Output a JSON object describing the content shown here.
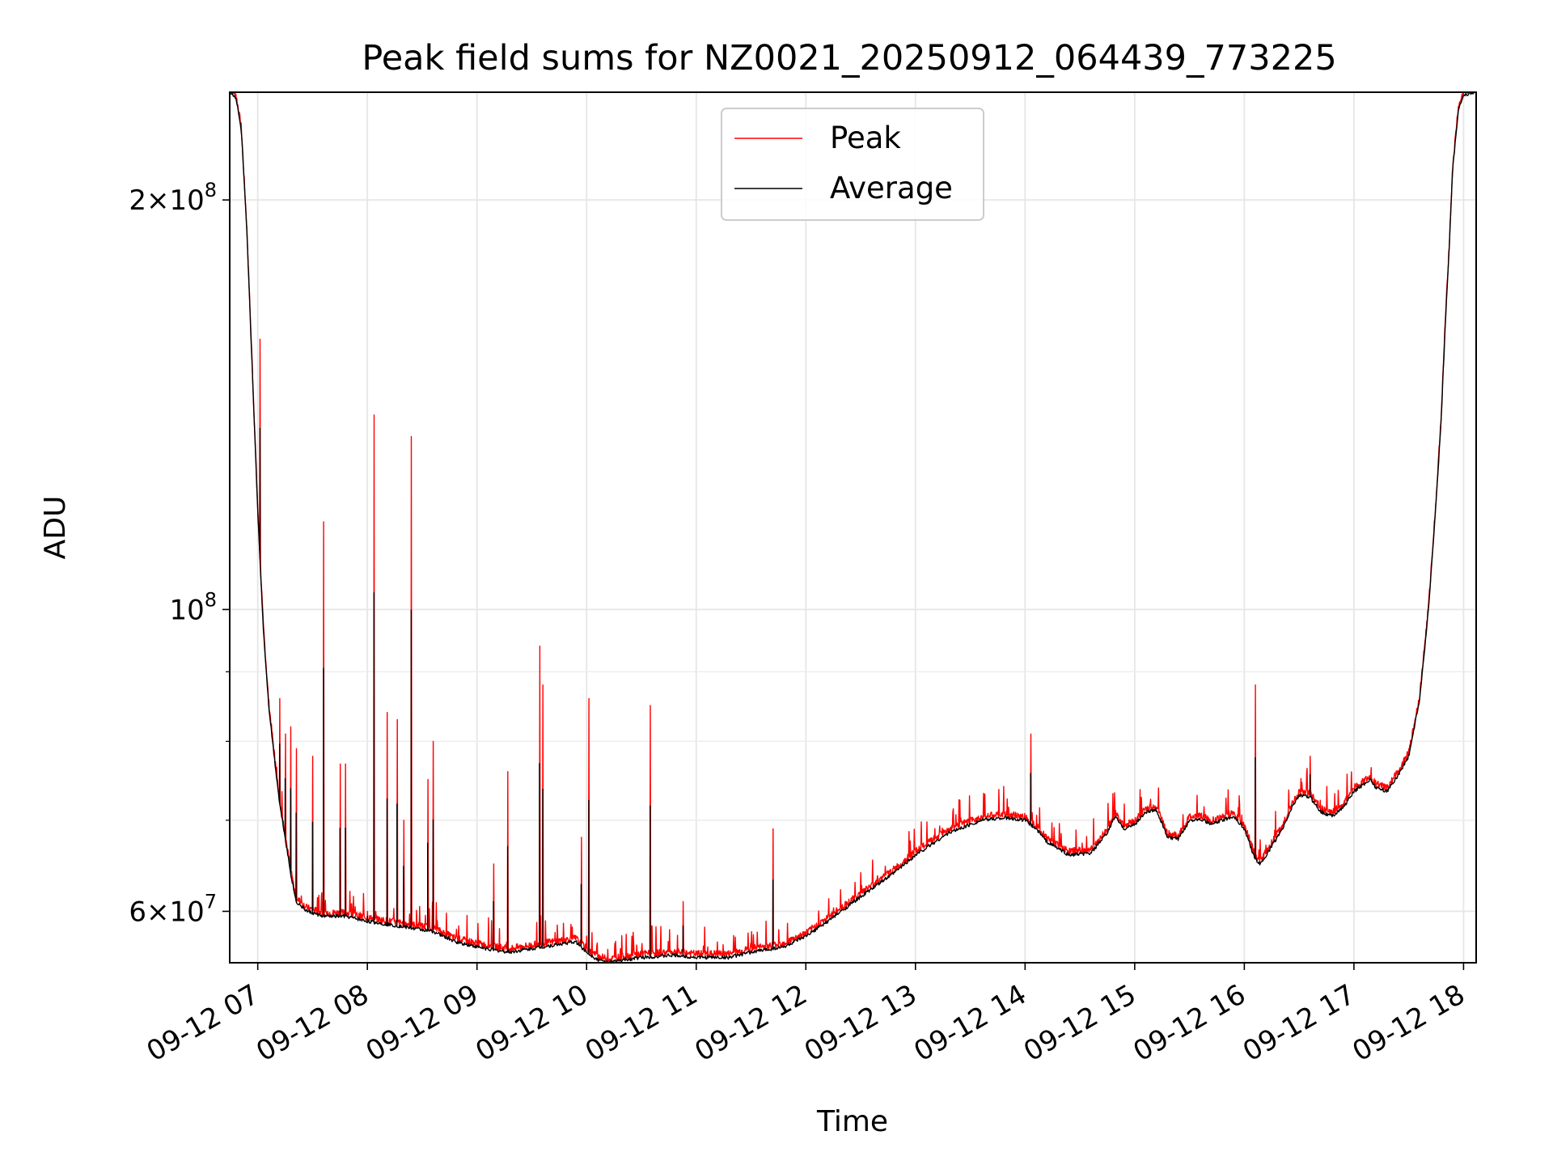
{
  "chart_data": {
    "type": "line",
    "title": "Peak field sums for NZ0021_20250912_064439_773225",
    "xlabel": "Time",
    "ylabel": "ADU",
    "x_range": [
      "2025-09-12 06:44:39",
      "2025-09-12 18:07"
    ],
    "ylim": [
      55000000,
      240000000
    ],
    "yscale": "log",
    "grid": true,
    "legend_position": "upper center",
    "x_tick_labels": [
      "09-12 07",
      "09-12 08",
      "09-12 09",
      "09-12 10",
      "09-12 11",
      "09-12 12",
      "09-12 13",
      "09-12 14",
      "09-12 15",
      "09-12 16",
      "09-12 17",
      "09-12 18"
    ],
    "x_ticks_hours": [
      7,
      8,
      9,
      10,
      11,
      12,
      13,
      14,
      15,
      16,
      17,
      18
    ],
    "y_major_ticks": [
      {
        "value": 60000000,
        "mant": "6",
        "exp": "7",
        "times": true
      },
      {
        "value": 100000000,
        "mant": "10",
        "exp": "8",
        "times": false
      },
      {
        "value": 200000000,
        "mant": "2",
        "exp": "8",
        "times": true
      }
    ],
    "y_minor_ticks": [
      70000000,
      80000000,
      90000000
    ],
    "colors": {
      "peak": "#ff0000",
      "average": "#000000"
    },
    "average_series": {
      "name": "Average",
      "hours": [
        6.745,
        6.8,
        6.85,
        6.9,
        6.95,
        7.0,
        7.05,
        7.1,
        7.15,
        7.2,
        7.25,
        7.3,
        7.35,
        7.45,
        7.6,
        7.8,
        8.0,
        8.3,
        8.6,
        8.8,
        9.0,
        9.15,
        9.3,
        9.6,
        9.9,
        10.0,
        10.1,
        10.2,
        10.3,
        10.5,
        10.8,
        11.0,
        11.3,
        11.5,
        11.8,
        12.0,
        12.2,
        12.5,
        12.8,
        13.0,
        13.3,
        13.6,
        13.8,
        14.0,
        14.1,
        14.2,
        14.4,
        14.6,
        14.75,
        14.82,
        14.9,
        15.0,
        15.1,
        15.2,
        15.3,
        15.4,
        15.5,
        15.6,
        15.7,
        15.8,
        15.9,
        16.0,
        16.1,
        16.15,
        16.25,
        16.35,
        16.45,
        16.5,
        16.6,
        16.7,
        16.8,
        16.9,
        17.0,
        17.1,
        17.15,
        17.2,
        17.3,
        17.4,
        17.5,
        17.6,
        17.68,
        17.75,
        17.8,
        17.83,
        17.87,
        17.9,
        17.95,
        18.0,
        18.1
      ],
      "values": [
        240000000,
        238000000,
        225000000,
        190000000,
        150000000,
        118000000,
        97000000,
        85000000,
        78000000,
        72000000,
        68000000,
        64000000,
        61000000,
        60000000,
        59500000,
        59500000,
        59000000,
        58500000,
        58000000,
        57000000,
        56500000,
        56200000,
        56000000,
        56500000,
        57000000,
        56000000,
        55300000,
        55000000,
        55200000,
        55500000,
        55700000,
        55500000,
        55500000,
        56000000,
        56500000,
        57500000,
        59000000,
        61500000,
        64000000,
        66000000,
        68500000,
        70000000,
        70300000,
        70000000,
        69000000,
        67500000,
        66000000,
        66200000,
        68500000,
        70500000,
        69000000,
        69500000,
        71000000,
        71200000,
        68000000,
        67800000,
        70000000,
        70200000,
        69500000,
        70000000,
        70500000,
        69000000,
        65500000,
        65000000,
        67000000,
        69000000,
        72000000,
        73000000,
        72800000,
        71000000,
        70500000,
        71500000,
        73500000,
        74500000,
        75000000,
        74000000,
        73500000,
        75500000,
        78000000,
        86000000,
        100000000,
        120000000,
        140000000,
        160000000,
        185000000,
        210000000,
        232000000,
        239000000,
        240000000
      ]
    },
    "peak_spikes": {
      "name": "Peak",
      "hours": [
        7.02,
        7.2,
        7.25,
        7.3,
        7.35,
        7.5,
        7.6,
        7.75,
        7.8,
        8.0,
        8.06,
        8.18,
        8.27,
        8.33,
        8.4,
        8.55,
        8.6,
        9.15,
        9.28,
        9.57,
        9.6,
        9.95,
        10.02,
        10.58,
        10.88,
        11.7,
        16.1,
        16.6,
        14.05
      ],
      "values": [
        158000000,
        86000000,
        81000000,
        82000000,
        79000000,
        78000000,
        116000000,
        77000000,
        77000000,
        60000000,
        139000000,
        84000000,
        83000000,
        70000000,
        134000000,
        75000000,
        80000000,
        65000000,
        76000000,
        94000000,
        88000000,
        68000000,
        86000000,
        85000000,
        61000000,
        69000000,
        88000000,
        78000000,
        81000000
      ]
    }
  },
  "legend": {
    "items": [
      {
        "label": "Peak",
        "color": "#ff0000"
      },
      {
        "label": "Average",
        "color": "#000000"
      }
    ]
  }
}
